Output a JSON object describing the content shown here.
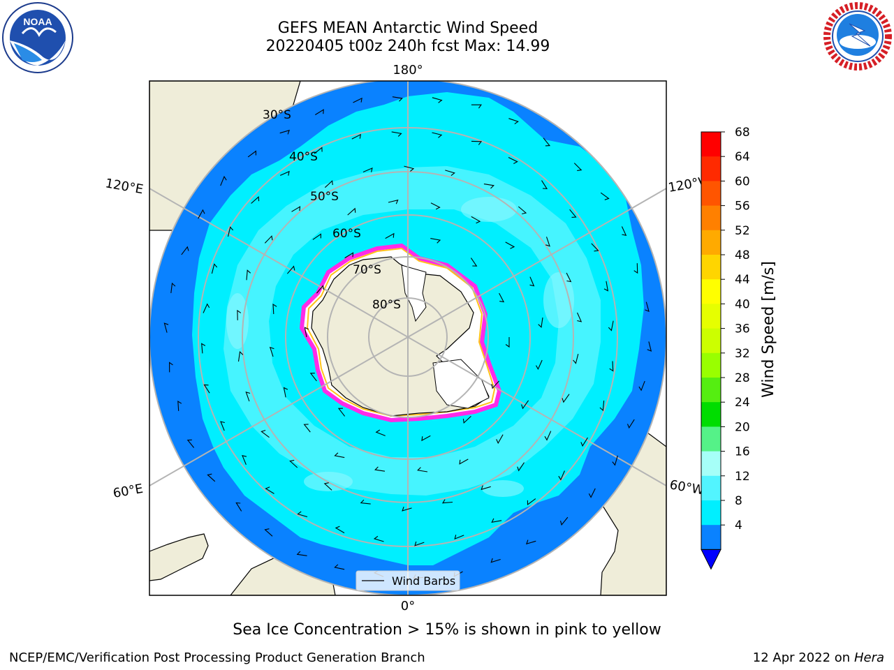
{
  "title": {
    "line1": "GEFS MEAN Antarctic Wind Speed",
    "line2": "20220405 t00z 240h fcst   Max: 14.99"
  },
  "map": {
    "projection": "south-polar-stereographic",
    "lon_labels": {
      "top": "180°",
      "bottom": "0°",
      "left_upper": "120°E",
      "right_upper": "120°W",
      "left_lower": "60°E",
      "right_lower": "60°W"
    },
    "lat_labels": [
      "30°S",
      "40°S",
      "50°S",
      "60°S",
      "70°S",
      "80°S"
    ],
    "legend_label": "Wind Barbs",
    "colors": {
      "ocean_dark": "#0a82ff",
      "ocean_mid": "#00efff",
      "ocean_light": "#52f4ff",
      "land": "#efedd9",
      "ice_edge": "#ff2be8",
      "ice_yellow": "#ffc21a",
      "grid": "#b4b4b4"
    }
  },
  "colorbar": {
    "label": "Wind Speed [m/s]",
    "ticks": [
      "68",
      "64",
      "60",
      "56",
      "52",
      "48",
      "44",
      "40",
      "36",
      "32",
      "28",
      "24",
      "20",
      "16",
      "12",
      "8",
      "4"
    ],
    "colors": [
      "#ff0000",
      "#ff2a00",
      "#ff5500",
      "#ff8000",
      "#ffaa00",
      "#ffd500",
      "#ffff00",
      "#e6ff00",
      "#ccff00",
      "#99ff00",
      "#55ee11",
      "#00dd00",
      "#55f288",
      "#a6fff8",
      "#52f4ff",
      "#00efff",
      "#0a82ff"
    ],
    "extend_color": "#0000ff"
  },
  "subtitle": "Sea Ice Concentration > 15% is shown in pink to yellow",
  "footer": {
    "left": "NCEP/EMC/Verification Post Processing Product Generation Branch",
    "right_date": "12 Apr 2022 on ",
    "right_host": "Hera"
  },
  "logos": {
    "noaa": "NOAA",
    "nws": "NATIONAL WEATHER SERVICE"
  }
}
